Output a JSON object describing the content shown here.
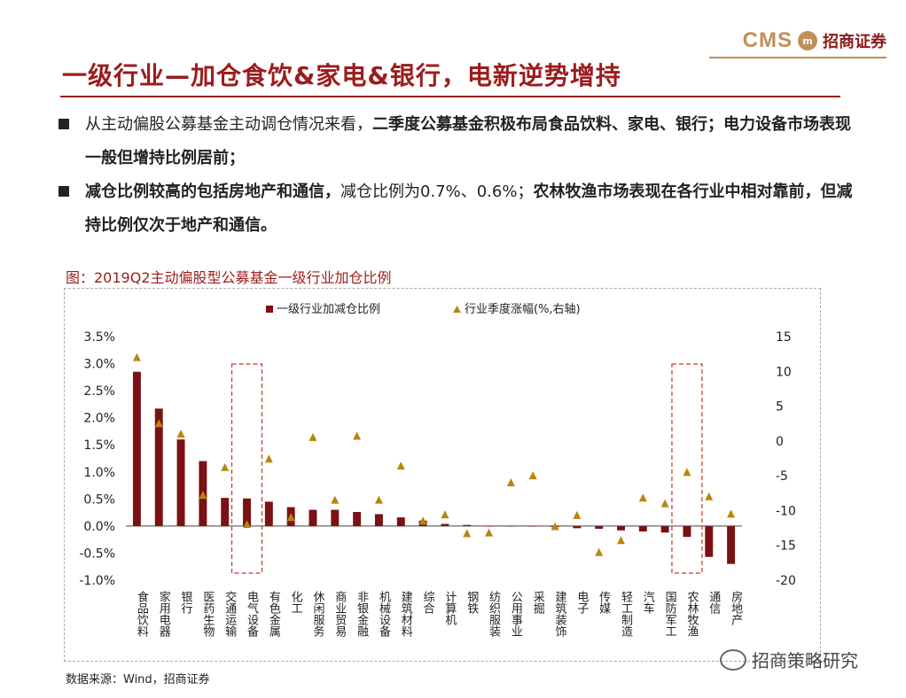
{
  "logo": {
    "cms": "CMS",
    "mark": "m",
    "cn": "招商证券"
  },
  "title": "一级行业—加仓食饮&家电&银行，电新逆势增持",
  "bullets": [
    {
      "plain1": "从主动偏股公募基金主动调仓情况来看，",
      "bold1": "二季度公募基金积极布局食品饮料、家电、银行；电力设备市场表现一般但增持比例居前；",
      "plain2": "",
      "bold2": ""
    },
    {
      "plain1": "",
      "bold1": "减仓比例较高的包括房地产和通信，",
      "plain2": "减仓比例为0.7%、0.6%；",
      "bold2": "农林牧渔市场表现在各行业中相对靠前，但减持比例仅次于地产和通信。"
    }
  ],
  "figure_title": "图：2019Q2主动偏股型公募基金一级行业加仓比例",
  "source": "数据来源：Wind，招商证券",
  "watermark": "招商策略研究",
  "chart_data": {
    "type": "bar+scatter",
    "colors": {
      "bar": "#7b1113",
      "marker": "#b8860b",
      "highlight": "#c0392b"
    },
    "legend": {
      "bar": "一级行业加减仓比例",
      "marker": "行业季度涨幅(%,右轴)",
      "position": "top-center"
    },
    "categories": [
      "食品饮料",
      "家用电器",
      "银行",
      "医药生物",
      "交通运输",
      "电气设备",
      "有色金属",
      "化工",
      "休闲服务",
      "商业贸易",
      "非银金融",
      "机械设备",
      "建筑材料",
      "综合",
      "计算机",
      "钢铁",
      "纺织服装",
      "公用事业",
      "采掘",
      "建筑装饰",
      "电子",
      "传媒",
      "轻工制造",
      "汽车",
      "国防军工",
      "农林牧渔",
      "通信",
      "房地产"
    ],
    "series": [
      {
        "name": "一级行业加减仓比例",
        "axis": "left",
        "values": [
          2.85,
          2.17,
          1.6,
          1.2,
          0.52,
          0.51,
          0.45,
          0.35,
          0.3,
          0.3,
          0.26,
          0.22,
          0.16,
          0.1,
          0.04,
          0.02,
          -0.01,
          -0.01,
          -0.01,
          -0.02,
          -0.04,
          -0.05,
          -0.08,
          -0.1,
          -0.12,
          -0.2,
          -0.57,
          -0.7
        ]
      },
      {
        "name": "行业季度涨幅(%,右轴)",
        "axis": "right",
        "values": [
          12.0,
          2.5,
          1.0,
          -7.8,
          -3.8,
          -12.0,
          -2.6,
          -11.0,
          0.5,
          -8.5,
          0.7,
          -8.5,
          -3.6,
          -11.5,
          -10.6,
          -13.3,
          -13.2,
          -6.0,
          -5.0,
          -12.3,
          -10.7,
          -16.0,
          -14.3,
          -8.2,
          -9.0,
          -4.5,
          -8.0,
          -10.5
        ]
      }
    ],
    "ylim_left": [
      -1.0,
      3.5
    ],
    "yticks_left": [
      "-1.0%",
      "-0.5%",
      "0.0%",
      "0.5%",
      "1.0%",
      "1.5%",
      "2.0%",
      "2.5%",
      "3.0%",
      "3.5%"
    ],
    "ylim_right": [
      -20,
      15
    ],
    "yticks_right": [
      "-20",
      "-15",
      "-10",
      "-5",
      "0",
      "5",
      "10",
      "15"
    ],
    "highlight_categories": [
      "电气设备",
      "农林牧渔"
    ]
  }
}
